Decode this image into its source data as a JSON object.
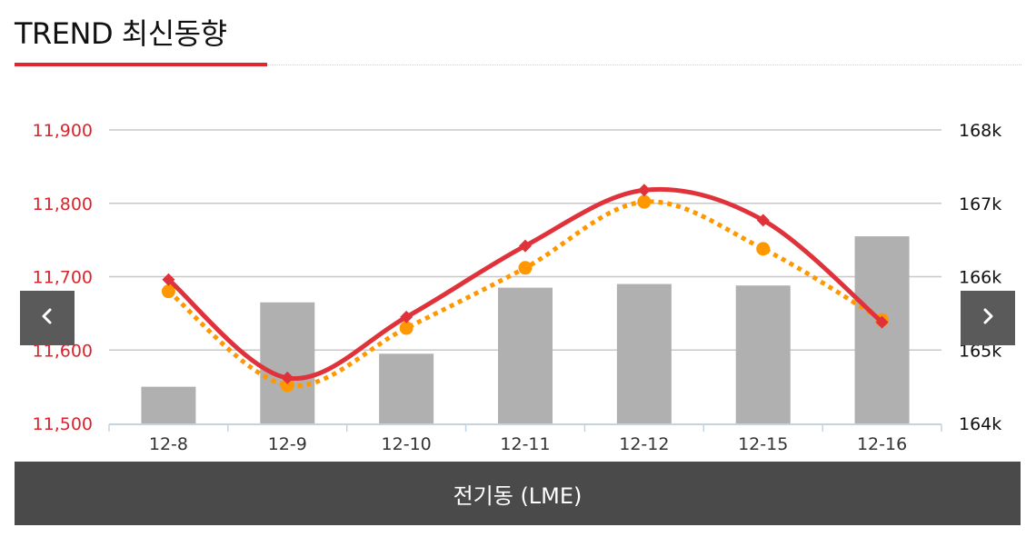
{
  "header": {
    "title": "TREND 최신동향"
  },
  "nav": {
    "prev_icon": "chevron-left-icon",
    "next_icon": "chevron-right-icon"
  },
  "footer": {
    "label": "전기동 (LME)"
  },
  "colors": {
    "accent": "#e0262e",
    "line_price": "#e0323a",
    "line_secondary": "#ff9800",
    "bars": "#b0b0b0",
    "footer_bg": "#4a4a4a",
    "nav_bg": "#5a5a5a"
  },
  "chart_data": {
    "type": "bar",
    "categories": [
      "12-8",
      "12-9",
      "12-10",
      "12-11",
      "12-12",
      "12-15",
      "12-16"
    ],
    "y_left": {
      "range": [
        11500,
        11900
      ],
      "ticks": [
        "11,500",
        "11,600",
        "11,700",
        "11,800",
        "11,900"
      ]
    },
    "y_right": {
      "range": [
        164000,
        168000
      ],
      "ticks": [
        "164k",
        "165k",
        "166k",
        "167k",
        "168k"
      ]
    },
    "grid": true,
    "series": [
      {
        "kind": "bar",
        "axis": "right",
        "values": [
          164500,
          165650,
          164950,
          165850,
          165900,
          165880,
          166550
        ]
      },
      {
        "kind": "line",
        "axis": "left",
        "marker": "diamond",
        "smooth": true,
        "values": [
          11696,
          11562,
          11645,
          11742,
          11818,
          11777,
          11638
        ]
      },
      {
        "kind": "line",
        "axis": "left",
        "marker": "circle",
        "dashed": true,
        "smooth": true,
        "values": [
          11680,
          11552,
          11630,
          11712,
          11802,
          11738,
          11641
        ]
      }
    ]
  }
}
